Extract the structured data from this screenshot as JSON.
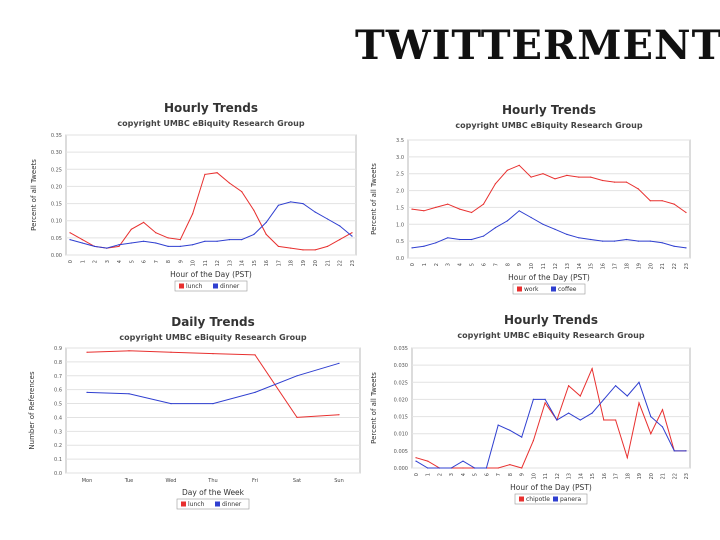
{
  "slide": {
    "title": "TWITTERMENT"
  },
  "chart_data": [
    {
      "type": "line",
      "title": "Hourly Trends",
      "subtitle": "copyright UMBC eBiquity Research Group",
      "xlabel": "Hour of the Day (PST)",
      "ylabel": "Percent of all Tweets",
      "categories": [
        "0",
        "1",
        "2",
        "3",
        "4",
        "5",
        "6",
        "7",
        "8",
        "9",
        "10",
        "11",
        "12",
        "13",
        "14",
        "15",
        "16",
        "17",
        "18",
        "19",
        "20",
        "21",
        "22",
        "23"
      ],
      "yticks": [
        "0.00",
        "0.05",
        "0.10",
        "0.15",
        "0.20",
        "0.25",
        "0.30",
        "0.35"
      ],
      "ylim": [
        0,
        0.35
      ],
      "series": [
        {
          "name": "lunch",
          "color": "#e8302f",
          "values": [
            0.065,
            0.045,
            0.025,
            0.02,
            0.025,
            0.075,
            0.095,
            0.065,
            0.05,
            0.045,
            0.12,
            0.235,
            0.24,
            0.21,
            0.185,
            0.13,
            0.06,
            0.025,
            0.02,
            0.015,
            0.015,
            0.025,
            0.045,
            0.065
          ]
        },
        {
          "name": "dinner",
          "color": "#2f3fd0",
          "values": [
            0.045,
            0.035,
            0.025,
            0.02,
            0.03,
            0.035,
            0.04,
            0.035,
            0.025,
            0.025,
            0.03,
            0.04,
            0.04,
            0.045,
            0.045,
            0.06,
            0.095,
            0.145,
            0.155,
            0.15,
            0.125,
            0.105,
            0.085,
            0.055
          ]
        }
      ]
    },
    {
      "type": "line",
      "title": "Hourly Trends",
      "subtitle": "copyright UMBC eBiquity Research Group",
      "xlabel": "Hour of the Day (PST)",
      "ylabel": "Percent of all Tweets",
      "categories": [
        "0",
        "1",
        "2",
        "3",
        "4",
        "5",
        "6",
        "7",
        "8",
        "9",
        "10",
        "11",
        "12",
        "13",
        "14",
        "15",
        "16",
        "17",
        "18",
        "19",
        "20",
        "21",
        "22",
        "23"
      ],
      "yticks": [
        "0.0",
        "0.5",
        "1.0",
        "1.5",
        "2.0",
        "2.5",
        "3.0",
        "3.5"
      ],
      "ylim": [
        0,
        3.5
      ],
      "series": [
        {
          "name": "work",
          "color": "#e8302f",
          "values": [
            1.45,
            1.4,
            1.5,
            1.6,
            1.45,
            1.35,
            1.6,
            2.2,
            2.6,
            2.75,
            2.4,
            2.5,
            2.35,
            2.45,
            2.4,
            2.4,
            2.3,
            2.25,
            2.25,
            2.05,
            1.7,
            1.7,
            1.6,
            1.35
          ]
        },
        {
          "name": "coffee",
          "color": "#2f3fd0",
          "values": [
            0.3,
            0.35,
            0.45,
            0.6,
            0.55,
            0.55,
            0.65,
            0.9,
            1.1,
            1.4,
            1.2,
            1.0,
            0.85,
            0.7,
            0.6,
            0.55,
            0.5,
            0.5,
            0.55,
            0.5,
            0.5,
            0.45,
            0.35,
            0.3
          ]
        }
      ]
    },
    {
      "type": "line",
      "title": "Daily Trends",
      "subtitle": "copyright UMBC eBiquity Research Group",
      "xlabel": "Day of the Week",
      "ylabel": "Number of References",
      "categories": [
        "Mon",
        "Tue",
        "Wed",
        "Thu",
        "Fri",
        "Sat",
        "Sun"
      ],
      "yticks": [
        "0.0",
        "0.1",
        "0.2",
        "0.3",
        "0.4",
        "0.5",
        "0.6",
        "0.7",
        "0.8",
        "0.9"
      ],
      "ylim": [
        0,
        0.9
      ],
      "series": [
        {
          "name": "lunch",
          "color": "#e8302f",
          "values": [
            0.87,
            0.88,
            0.87,
            0.86,
            0.85,
            0.4,
            0.42
          ]
        },
        {
          "name": "dinner",
          "color": "#2f3fd0",
          "values": [
            0.58,
            0.57,
            0.5,
            0.5,
            0.58,
            0.7,
            0.79
          ]
        }
      ]
    },
    {
      "type": "line",
      "title": "Hourly Trends",
      "subtitle": "copyright UMBC eBiquity Research Group",
      "xlabel": "Hour of the Day (PST)",
      "ylabel": "Percent of all Tweets",
      "categories": [
        "0",
        "1",
        "2",
        "3",
        "4",
        "5",
        "6",
        "7",
        "8",
        "9",
        "10",
        "11",
        "12",
        "13",
        "14",
        "15",
        "16",
        "17",
        "18",
        "19",
        "20",
        "21",
        "22",
        "23"
      ],
      "yticks": [
        "0.000",
        "0.005",
        "0.010",
        "0.015",
        "0.020",
        "0.025",
        "0.030",
        "0.035"
      ],
      "ylim": [
        0,
        0.035
      ],
      "series": [
        {
          "name": "chipotle",
          "color": "#e8302f",
          "values": [
            0.003,
            0.002,
            0,
            0,
            0,
            0,
            0,
            0,
            0.001,
            0,
            0.008,
            0.019,
            0.014,
            0.024,
            0.021,
            0.029,
            0.014,
            0.014,
            0.003,
            0.019,
            0.01,
            0.017,
            0.005,
            0.005
          ]
        },
        {
          "name": "panera",
          "color": "#2f3fd0",
          "values": [
            0.002,
            0,
            0,
            0,
            0.002,
            0,
            0,
            0.0125,
            0.011,
            0.009,
            0.02,
            0.02,
            0.014,
            0.016,
            0.014,
            0.016,
            0.02,
            0.024,
            0.021,
            0.025,
            0.015,
            0.012,
            0.005,
            0.005
          ]
        }
      ]
    }
  ]
}
